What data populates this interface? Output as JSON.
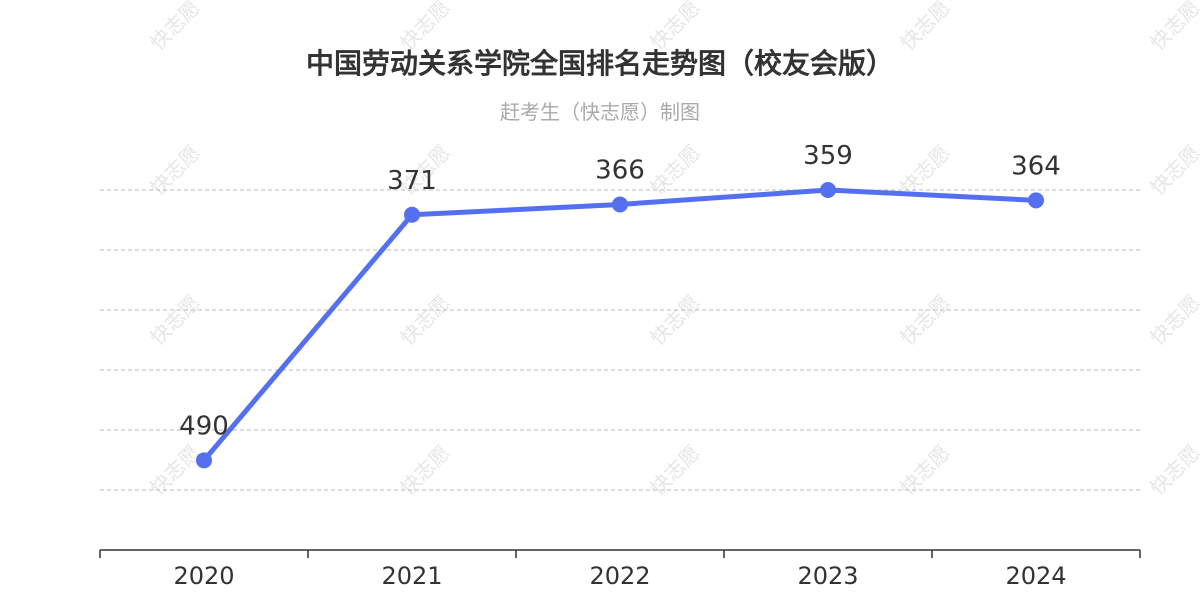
{
  "title": "中国劳动关系学院全国排名走势图（校友会版）",
  "subtitle": "赶考生（快志愿）制图",
  "watermark_text": "快志愿",
  "colors": {
    "line": "#5470f0",
    "axis": "#333333",
    "grid": "#bbbbbb",
    "title": "#333333",
    "subtitle": "#aaaaaa"
  },
  "chart_data": {
    "type": "line",
    "categories": [
      "2020",
      "2021",
      "2022",
      "2023",
      "2024"
    ],
    "series": [
      {
        "values": [
          490,
          371,
          366,
          359,
          364
        ]
      }
    ],
    "data_labels": [
      "490",
      "371",
      "366",
      "359",
      "364"
    ],
    "y_axis_inverted": true,
    "y_axis_labels_shown": false,
    "grid": true,
    "legend": false
  }
}
